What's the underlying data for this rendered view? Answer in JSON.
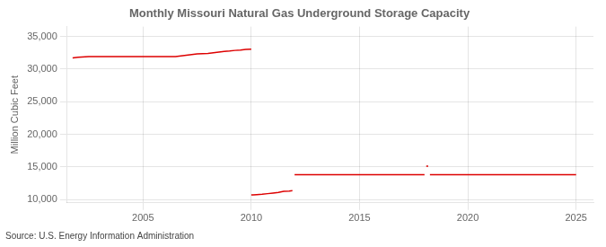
{
  "chart_data": {
    "type": "line",
    "title": "Monthly Missouri Natural Gas Underground Storage Capacity",
    "ylabel": "Million Cubic Feet",
    "annotation": "Source: U.S. Energy Information Administration",
    "color": "#dd0000",
    "grid": true,
    "xlim": [
      2001.5,
      2025.8
    ],
    "ylim": [
      9500,
      36500
    ],
    "xticks": [
      2005,
      2010,
      2015,
      2020,
      2025
    ],
    "yticks": [
      {
        "value": 10000,
        "label": "10,000"
      },
      {
        "value": 15000,
        "label": "15,000"
      },
      {
        "value": 20000,
        "label": "20,000"
      },
      {
        "value": 25000,
        "label": "25,000"
      },
      {
        "value": 30000,
        "label": "30,000"
      },
      {
        "value": 35000,
        "label": "35,000"
      }
    ],
    "series": [
      {
        "x": [
          2001.75,
          2002.0,
          2002.5,
          2003.0,
          2003.5,
          2004.0,
          2004.5,
          2005.0,
          2005.5,
          2006.0,
          2006.5,
          2007.0,
          2007.25,
          2007.5,
          2007.75,
          2008.0,
          2008.25,
          2008.5,
          2008.75,
          2009.0,
          2009.25,
          2009.5,
          2009.75,
          2010.0
        ],
        "values": [
          31700,
          31800,
          31900,
          31900,
          31900,
          31900,
          31900,
          31900,
          31900,
          31900,
          31900,
          32100,
          32200,
          32300,
          32350,
          32400,
          32500,
          32600,
          32700,
          32750,
          32850,
          32900,
          33000,
          33050
        ]
      },
      {
        "x": [
          2010.0,
          2010.08,
          2010.25,
          2010.5,
          2010.75,
          2011.0,
          2011.25,
          2011.5,
          2011.75,
          2011.9
        ],
        "values": [
          10700,
          10700,
          10750,
          10800,
          10900,
          11000,
          11100,
          11250,
          11300,
          11350
        ]
      },
      {
        "x": [
          2012.0,
          2012.5,
          2013.0,
          2013.5,
          2014.0,
          2014.5,
          2015.0,
          2015.5,
          2016.0,
          2016.5,
          2017.0,
          2017.5,
          2018.0
        ],
        "values": [
          13800,
          13800,
          13800,
          13800,
          13800,
          13800,
          13800,
          13800,
          13800,
          13800,
          13800,
          13800,
          13800
        ]
      },
      {
        "x": [
          2018.08,
          2018.17
        ],
        "values": [
          15100,
          15100
        ]
      },
      {
        "x": [
          2018.25,
          2018.5,
          2019.0,
          2019.5,
          2020.0,
          2020.5,
          2021.0,
          2021.5,
          2022.0,
          2022.5,
          2023.0,
          2023.5,
          2024.0,
          2024.5,
          2025.0
        ],
        "values": [
          13800,
          13800,
          13800,
          13800,
          13800,
          13800,
          13800,
          13800,
          13800,
          13800,
          13800,
          13800,
          13800,
          13800,
          13800
        ]
      }
    ]
  }
}
